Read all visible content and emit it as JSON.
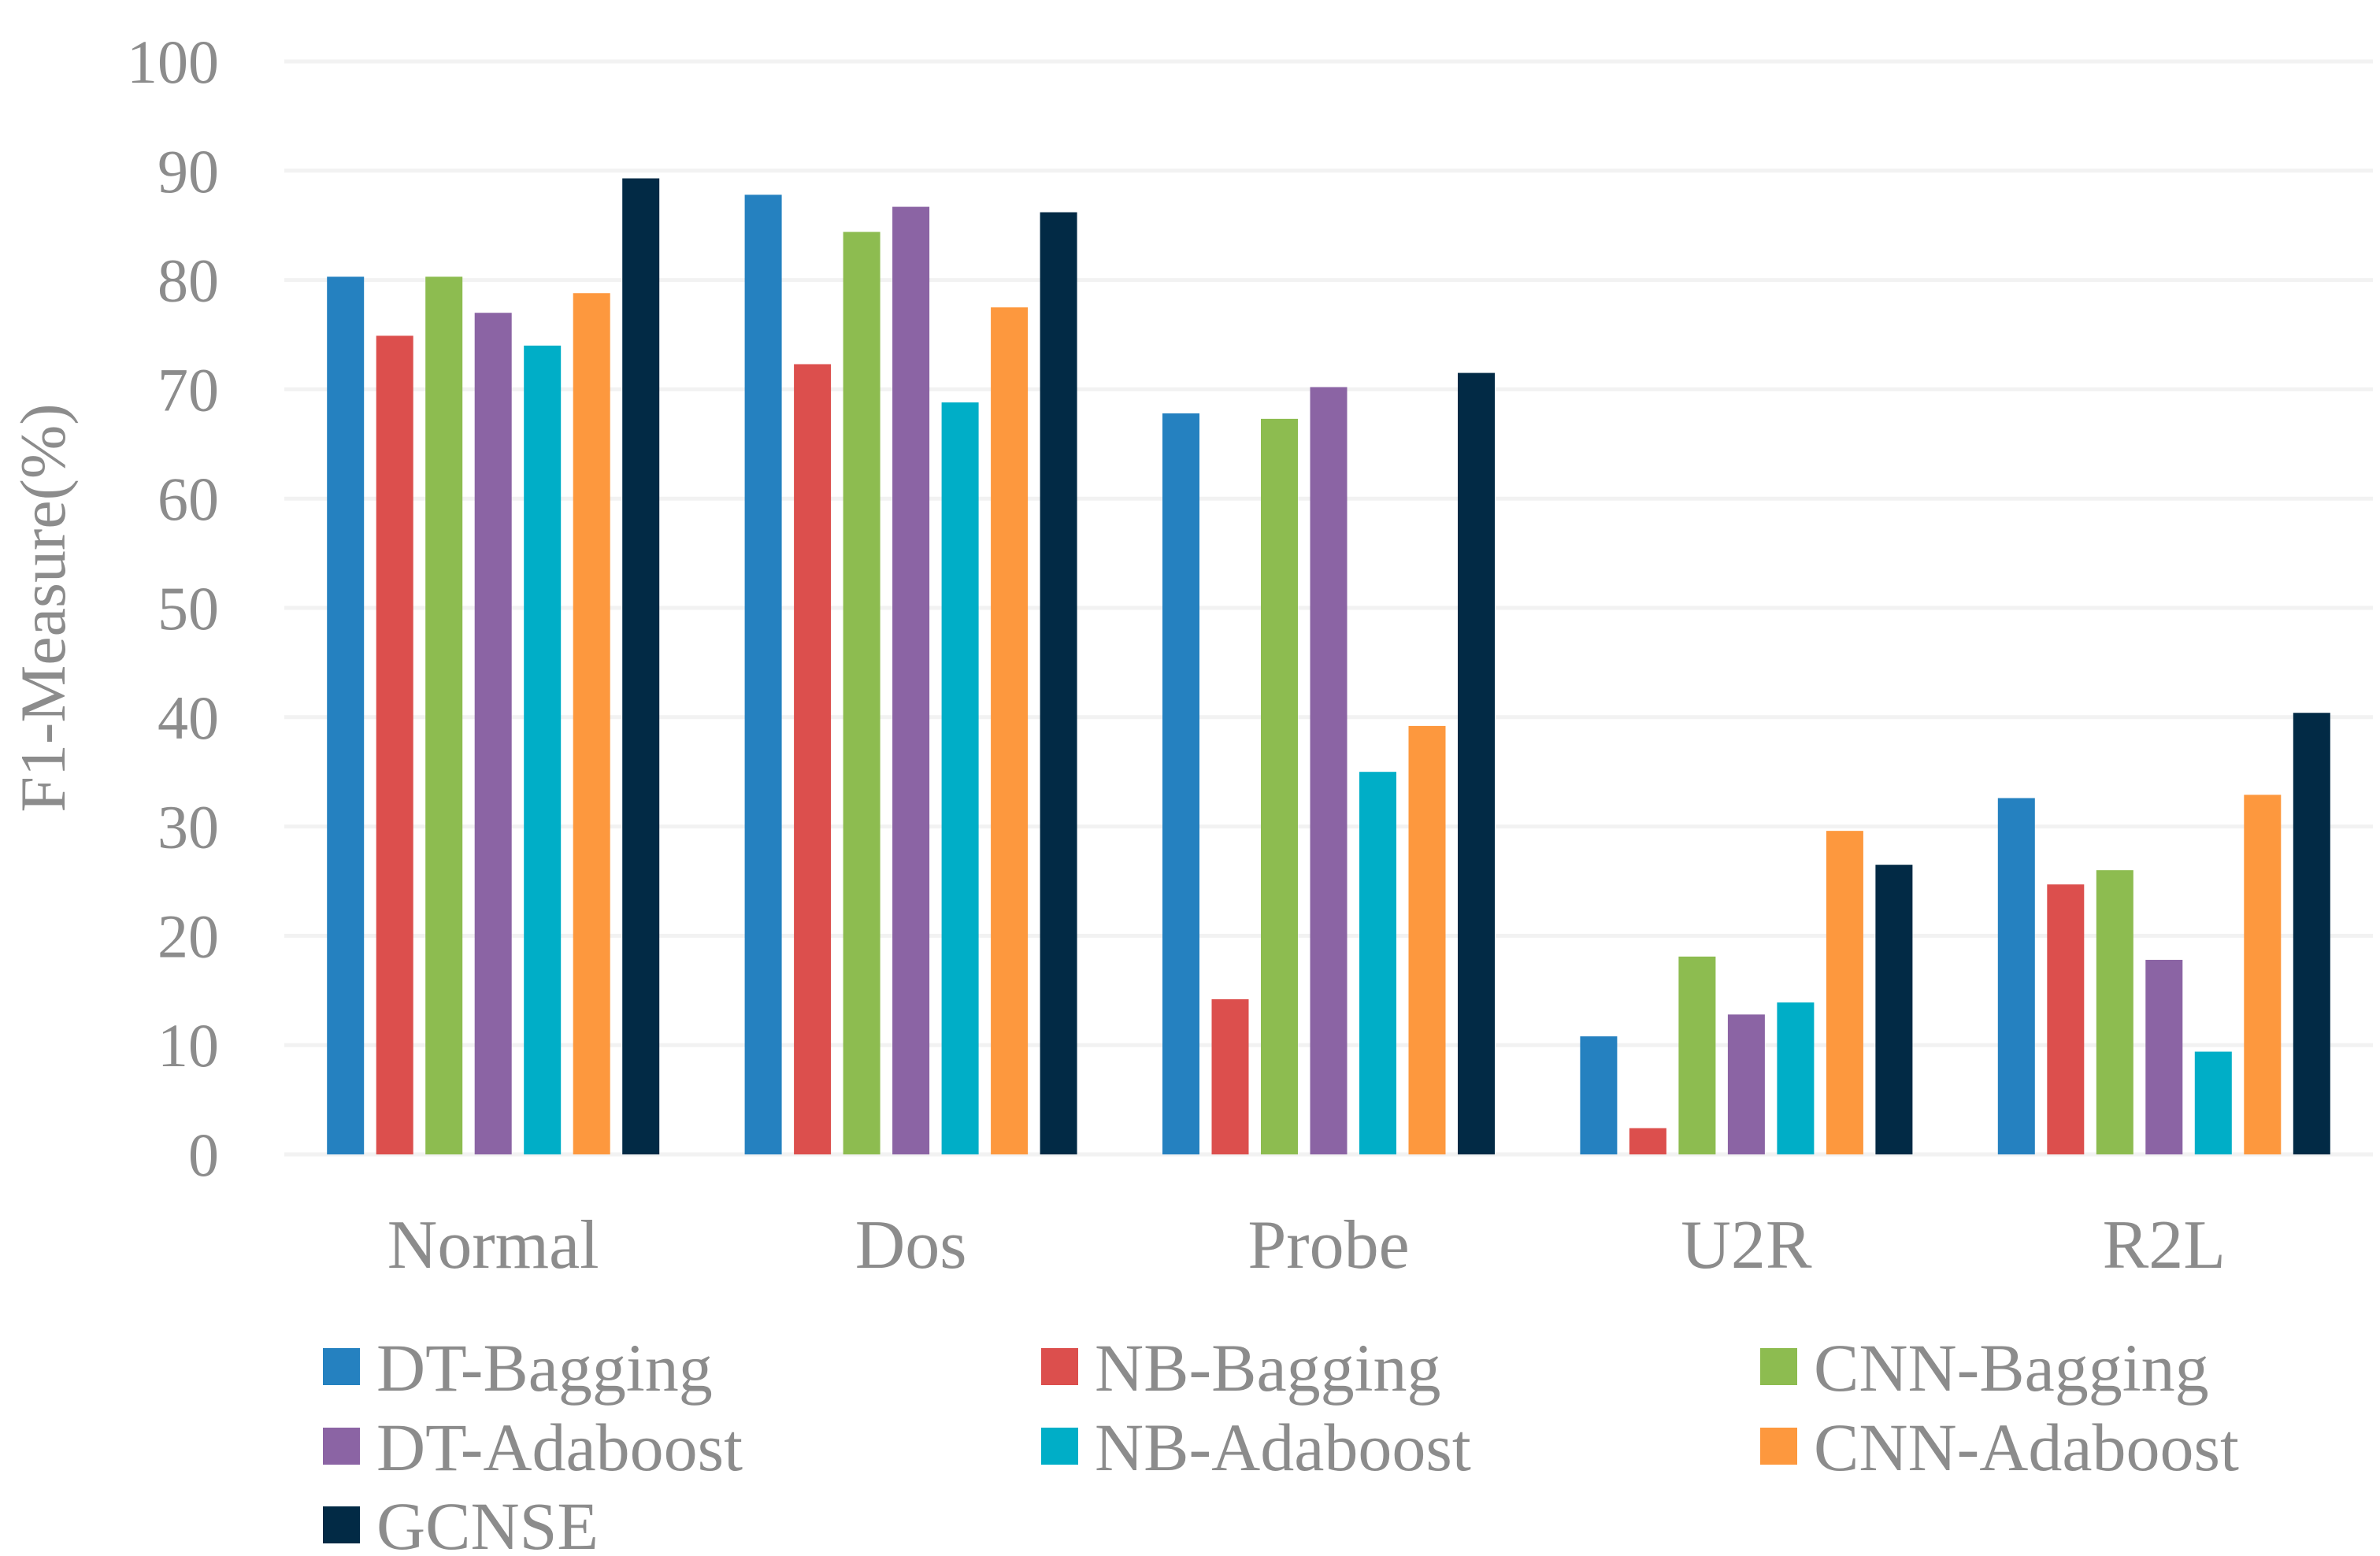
{
  "chart_data": {
    "type": "bar",
    "title": "",
    "xlabel": "",
    "ylabel": "F1-Measure(%)",
    "ylim": [
      0,
      100
    ],
    "yticks": [
      "0",
      "10",
      "20",
      "30",
      "40",
      "50",
      "60",
      "70",
      "80",
      "90",
      "100"
    ],
    "grid": true,
    "legend_position": "bottom",
    "categories": [
      "Normal",
      "Dos",
      "Probe",
      "U2R",
      "R2L"
    ],
    "series": [
      {
        "name": "DT-Bagging",
        "color": "#2581C0",
        "values": [
          80.3,
          87.8,
          67.8,
          10.8,
          32.6
        ]
      },
      {
        "name": "NB-Bagging",
        "color": "#DC4F4D",
        "values": [
          74.9,
          72.3,
          14.2,
          2.4,
          24.7
        ]
      },
      {
        "name": "CNN-Bagging",
        "color": "#8DBC50",
        "values": [
          80.3,
          84.4,
          67.3,
          18.1,
          26.0
        ]
      },
      {
        "name": "DT-Adaboost",
        "color": "#8B64A4",
        "values": [
          77.0,
          86.7,
          70.2,
          12.8,
          17.8
        ]
      },
      {
        "name": "NB-Adaboost",
        "color": "#00AEC7",
        "values": [
          74.0,
          68.8,
          35.0,
          13.9,
          9.4
        ]
      },
      {
        "name": "CNN-Adaboost",
        "color": "#FD983E",
        "values": [
          78.8,
          77.5,
          39.2,
          29.6,
          32.9
        ]
      },
      {
        "name": "GCNSE",
        "color": "#022A45",
        "values": [
          89.3,
          86.2,
          71.5,
          26.5,
          40.4
        ]
      }
    ]
  }
}
